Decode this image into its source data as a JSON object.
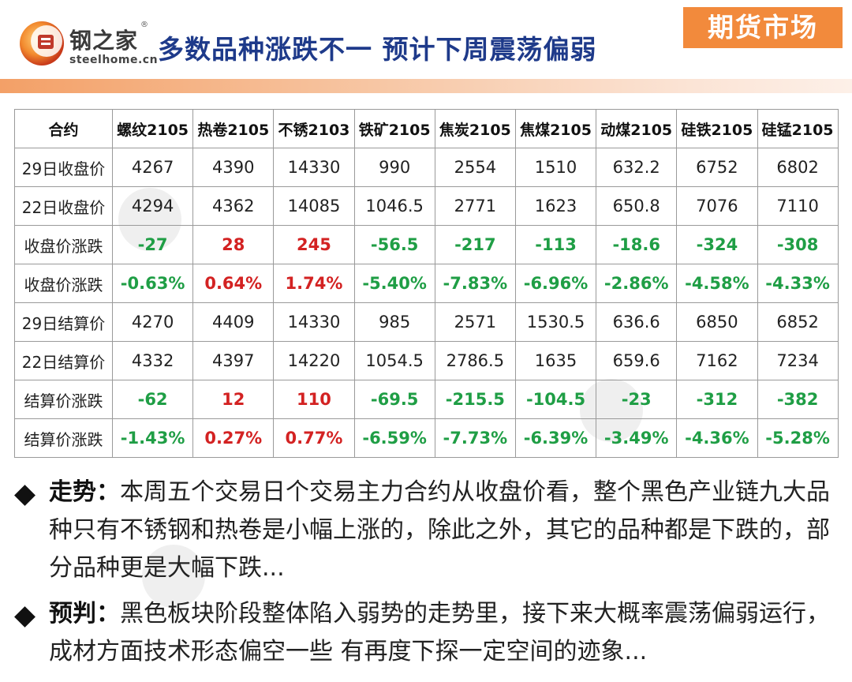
{
  "header": {
    "logo_cn": "钢之家",
    "logo_reg": "®",
    "logo_en": "steelhome.cn",
    "title": "多数品种涨跌不一 预计下周震荡偏弱",
    "section": "期货市场"
  },
  "table": {
    "corner": "合约",
    "columns": [
      "螺纹2105",
      "热卷2105",
      "不锈2103",
      "铁矿2105",
      "焦炭2105",
      "焦煤2105",
      "动煤2105",
      "硅铁2105",
      "硅锰2105"
    ],
    "rows": [
      {
        "label": "29日收盘价",
        "kind": "plain",
        "cells": [
          "4267",
          "4390",
          "14330",
          "990",
          "2554",
          "1510",
          "632.2",
          "6752",
          "6802"
        ]
      },
      {
        "label": "22日收盘价",
        "kind": "plain",
        "cells": [
          "4294",
          "4362",
          "14085",
          "1046.5",
          "2771",
          "1623",
          "650.8",
          "7076",
          "7110"
        ]
      },
      {
        "label": "收盘价涨跌",
        "kind": "change",
        "cells": [
          "-27",
          "28",
          "245",
          "-56.5",
          "-217",
          "-113",
          "-18.6",
          "-324",
          "-308"
        ]
      },
      {
        "label": "收盘价涨跌",
        "kind": "change",
        "cells": [
          "-0.63%",
          "0.64%",
          "1.74%",
          "-5.40%",
          "-7.83%",
          "-6.96%",
          "-2.86%",
          "-4.58%",
          "-4.33%"
        ]
      },
      {
        "label": "29日结算价",
        "kind": "plain",
        "cells": [
          "4270",
          "4409",
          "14330",
          "985",
          "2571",
          "1530.5",
          "636.6",
          "6850",
          "6852"
        ]
      },
      {
        "label": "22日结算价",
        "kind": "plain",
        "cells": [
          "4332",
          "4397",
          "14220",
          "1054.5",
          "2786.5",
          "1635",
          "659.6",
          "7162",
          "7234"
        ]
      },
      {
        "label": "结算价涨跌",
        "kind": "change",
        "cells": [
          "-62",
          "12",
          "110",
          "-69.5",
          "-215.5",
          "-104.5",
          "-23",
          "-312",
          "-382"
        ]
      },
      {
        "label": "结算价涨跌",
        "kind": "change",
        "cells": [
          "-1.43%",
          "0.27%",
          "0.77%",
          "-6.59%",
          "-7.73%",
          "-6.39%",
          "-3.49%",
          "-4.36%",
          "-5.28%"
        ]
      }
    ]
  },
  "colors": {
    "up": "#d32222",
    "down": "#1f9e45",
    "title": "#1e3a8a",
    "badge": "#f28a3c"
  },
  "bullets": [
    {
      "key": "走势：",
      "text": "本周五个交易日个交易主力合约从收盘价看，整个黑色产业链九大品种只有不锈钢和热卷是小幅上涨的，除此之外，其它的品种都是下跌的，部分品种更是大幅下跌..."
    },
    {
      "key": "预判：",
      "text": "黑色板块阶段整体陷入弱势的走势里，接下来大概率震荡偏弱运行，成材方面技术形态偏空一些 有再度下探一定空间的迹象..."
    }
  ]
}
